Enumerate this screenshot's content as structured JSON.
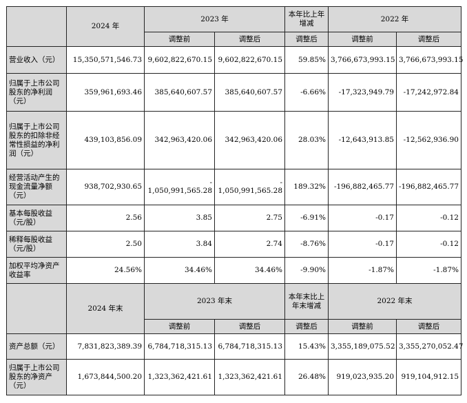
{
  "headers": {
    "section1": {
      "year1": "2024 年",
      "year2": "2023 年",
      "change": "本年比上年增减",
      "year3": "2022 年"
    },
    "section2": {
      "year1": "2024 年末",
      "year2": "2023 年末",
      "change": "本年末比上年末增减",
      "year3": "2022 年末"
    },
    "sub": {
      "before": "调整前",
      "after": "调整后"
    }
  },
  "rows": [
    {
      "label": "营业收入（元）",
      "v2024": "15,350,571,546.73",
      "v2023_before": "9,602,822,670.15",
      "v2023_after": "9,602,822,670.15",
      "change": "59.85%",
      "v2022_before": "3,766,673,993.15",
      "v2022_after": "3,766,673,993.15"
    },
    {
      "label": "归属于上市公司股东的净利润（元）",
      "v2024": "359,961,693.46",
      "v2023_before": "385,640,607.57",
      "v2023_after": "385,640,607.57",
      "change": "-6.66%",
      "v2022_before": "-17,323,949.79",
      "v2022_after": "-17,242,972.84"
    },
    {
      "label": "归属于上市公司股东的扣除非经常性损益的净利润（元）",
      "v2024": "439,103,856.09",
      "v2023_before": "342,963,420.06",
      "v2023_after": "342,963,420.06",
      "change": "28.03%",
      "v2022_before": "-12,643,913.85",
      "v2022_after": "-12,562,936.90"
    },
    {
      "label": "经营活动产生的现金流量净额（元）",
      "v2024": "938,702,930.65",
      "v2023_before_sign": "-",
      "v2023_before": "1,050,991,565.28",
      "v2023_after_sign": "-",
      "v2023_after": "1,050,991,565.28",
      "change": "189.32%",
      "v2022_before": "-196,882,465.77",
      "v2022_after": "-196,882,465.77"
    },
    {
      "label": "基本每股收益（元/股）",
      "v2024": "2.56",
      "v2023_before": "3.85",
      "v2023_after": "2.75",
      "change": "-6.91%",
      "v2022_before": "-0.17",
      "v2022_after": "-0.12"
    },
    {
      "label": "稀释每股收益（元/股）",
      "v2024": "2.50",
      "v2023_before": "3.84",
      "v2023_after": "2.74",
      "change": "-8.76%",
      "v2022_before": "-0.17",
      "v2022_after": "-0.12"
    },
    {
      "label": "加权平均净资产收益率",
      "v2024": "24.56%",
      "v2023_before": "34.46%",
      "v2023_after": "34.46%",
      "change": "-9.90%",
      "v2022_before": "-1.87%",
      "v2022_after": "-1.87%"
    }
  ],
  "rows2": [
    {
      "label": "资产总额（元）",
      "v2024": "7,831,823,389.39",
      "v2023_before": "6,784,718,315.13",
      "v2023_after": "6,784,718,315.13",
      "change": "15.43%",
      "v2022_before": "3,355,189,075.52",
      "v2022_after": "3,355,270,052.47"
    },
    {
      "label": "归属于上市公司股东的净资产（元）",
      "v2024": "1,673,844,500.20",
      "v2023_before": "1,323,362,421.61",
      "v2023_after": "1,323,362,421.61",
      "change": "26.48%",
      "v2022_before": "919,023,935.20",
      "v2022_after": "919,104,912.15"
    }
  ]
}
